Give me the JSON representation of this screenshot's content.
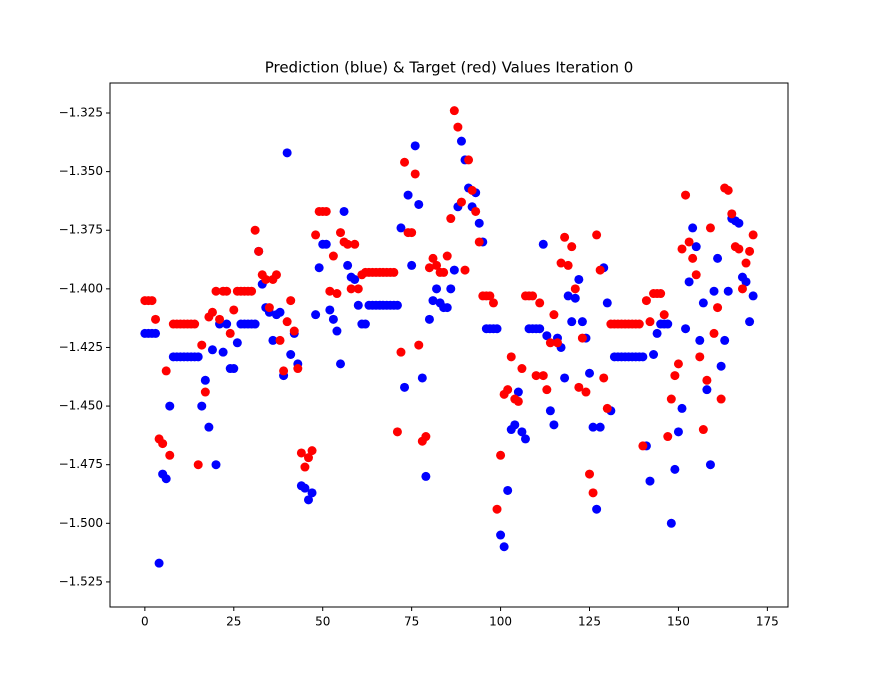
{
  "chart_data": {
    "type": "scatter",
    "title": "Prediction (blue) & Target (red) Values Iteration 0",
    "x": [
      0,
      1,
      2,
      3,
      4,
      5,
      6,
      7,
      8,
      9,
      10,
      11,
      12,
      13,
      14,
      15,
      16,
      17,
      18,
      19,
      20,
      21,
      22,
      23,
      24,
      25,
      26,
      27,
      28,
      29,
      30,
      31,
      32,
      33,
      34,
      35,
      36,
      37,
      38,
      39,
      40,
      41,
      42,
      43,
      44,
      45,
      46,
      47,
      48,
      49,
      50,
      51,
      52,
      53,
      54,
      55,
      56,
      57,
      58,
      59,
      60,
      61,
      62,
      63,
      64,
      65,
      66,
      67,
      68,
      69,
      70,
      71,
      72,
      73,
      74,
      75,
      76,
      77,
      78,
      79,
      80,
      81,
      82,
      83,
      84,
      85,
      86,
      87,
      88,
      89,
      90,
      91,
      92,
      93,
      94,
      95,
      96,
      97,
      98,
      99,
      100,
      101,
      102,
      103,
      104,
      105,
      106,
      107,
      108,
      109,
      110,
      111,
      112,
      113,
      114,
      115,
      116,
      117,
      118,
      119,
      120,
      121,
      122,
      123,
      124,
      125,
      126,
      127,
      128,
      129,
      130,
      131,
      132,
      133,
      134,
      135,
      136,
      137,
      138,
      139,
      140,
      141,
      142,
      143,
      144,
      145,
      146,
      147,
      148,
      149,
      150,
      151,
      152,
      153,
      154,
      155,
      156,
      157,
      158,
      159,
      160,
      161,
      162,
      163,
      164,
      165,
      166,
      167,
      168,
      169,
      170,
      171
    ],
    "series": [
      {
        "color": "#0000ff",
        "values": [
          -1.419,
          -1.419,
          -1.419,
          -1.419,
          -1.517,
          -1.479,
          -1.481,
          -1.45,
          -1.429,
          -1.429,
          -1.429,
          -1.429,
          -1.429,
          -1.429,
          -1.429,
          -1.429,
          -1.45,
          -1.439,
          -1.459,
          -1.426,
          -1.475,
          -1.415,
          -1.427,
          -1.415,
          -1.434,
          -1.434,
          -1.423,
          -1.415,
          -1.415,
          -1.415,
          -1.415,
          -1.415,
          -1.384,
          -1.398,
          -1.408,
          -1.41,
          -1.422,
          -1.411,
          -1.41,
          -1.437,
          -1.342,
          -1.428,
          -1.419,
          -1.432,
          -1.484,
          -1.485,
          -1.49,
          -1.487,
          -1.411,
          -1.391,
          -1.381,
          -1.381,
          -1.409,
          -1.413,
          -1.418,
          -1.432,
          -1.367,
          -1.39,
          -1.395,
          -1.396,
          -1.407,
          -1.415,
          -1.415,
          -1.407,
          -1.407,
          -1.407,
          -1.407,
          -1.407,
          -1.407,
          -1.407,
          -1.407,
          -1.407,
          -1.374,
          -1.442,
          -1.36,
          -1.39,
          -1.339,
          -1.364,
          -1.438,
          -1.48,
          -1.413,
          -1.405,
          -1.4,
          -1.406,
          -1.408,
          -1.408,
          -1.4,
          -1.392,
          -1.365,
          -1.337,
          -1.345,
          -1.357,
          -1.365,
          -1.359,
          -1.372,
          -1.38,
          -1.417,
          -1.417,
          -1.417,
          -1.417,
          -1.505,
          -1.51,
          -1.486,
          -1.46,
          -1.458,
          -1.444,
          -1.461,
          -1.464,
          -1.417,
          -1.417,
          -1.417,
          -1.417,
          -1.381,
          -1.42,
          -1.452,
          -1.458,
          -1.421,
          -1.425,
          -1.438,
          -1.403,
          -1.414,
          -1.404,
          -1.396,
          -1.414,
          -1.421,
          -1.436,
          -1.459,
          -1.494,
          -1.459,
          -1.391,
          -1.406,
          -1.452,
          -1.429,
          -1.429,
          -1.429,
          -1.429,
          -1.429,
          -1.429,
          -1.429,
          -1.429,
          -1.429,
          -1.467,
          -1.482,
          -1.428,
          -1.419,
          -1.415,
          -1.415,
          -1.415,
          -1.5,
          -1.477,
          -1.461,
          -1.451,
          -1.417,
          -1.397,
          -1.374,
          -1.382,
          -1.422,
          -1.406,
          -1.443,
          -1.475,
          -1.401,
          -1.387,
          -1.433,
          -1.422,
          -1.401,
          -1.37,
          -1.371,
          -1.372,
          -1.395,
          -1.397,
          -1.414,
          -1.403
        ]
      },
      {
        "color": "#ff0000",
        "values": [
          -1.405,
          -1.405,
          -1.405,
          -1.413,
          -1.464,
          -1.466,
          -1.435,
          -1.471,
          -1.415,
          -1.415,
          -1.415,
          -1.415,
          -1.415,
          -1.415,
          -1.415,
          -1.475,
          -1.424,
          -1.444,
          -1.412,
          -1.41,
          -1.401,
          -1.413,
          -1.401,
          -1.401,
          -1.419,
          -1.409,
          -1.401,
          -1.401,
          -1.401,
          -1.401,
          -1.401,
          -1.375,
          -1.384,
          -1.394,
          -1.396,
          -1.408,
          -1.396,
          -1.394,
          -1.422,
          -1.435,
          -1.414,
          -1.405,
          -1.418,
          -1.434,
          -1.47,
          -1.476,
          -1.472,
          -1.469,
          -1.377,
          -1.367,
          -1.367,
          -1.367,
          -1.401,
          -1.386,
          -1.402,
          -1.376,
          -1.38,
          -1.381,
          -1.4,
          -1.381,
          -1.4,
          -1.394,
          -1.393,
          -1.393,
          -1.393,
          -1.393,
          -1.393,
          -1.393,
          -1.393,
          -1.393,
          -1.393,
          -1.461,
          -1.427,
          -1.346,
          -1.376,
          -1.376,
          -1.351,
          -1.424,
          -1.465,
          -1.463,
          -1.391,
          -1.387,
          -1.39,
          -1.393,
          -1.393,
          -1.386,
          -1.37,
          -1.324,
          -1.331,
          -1.363,
          -1.392,
          -1.345,
          -1.358,
          -1.367,
          -1.38,
          -1.403,
          -1.403,
          -1.403,
          -1.406,
          -1.494,
          -1.471,
          -1.445,
          -1.443,
          -1.429,
          -1.447,
          -1.448,
          -1.434,
          -1.403,
          -1.403,
          -1.403,
          -1.437,
          -1.406,
          -1.437,
          -1.443,
          -1.423,
          -1.411,
          -1.423,
          -1.389,
          -1.378,
          -1.39,
          -1.382,
          -1.4,
          -1.442,
          -1.421,
          -1.444,
          -1.479,
          -1.487,
          -1.377,
          -1.392,
          -1.438,
          -1.451,
          -1.415,
          -1.415,
          -1.415,
          -1.415,
          -1.415,
          -1.415,
          -1.415,
          -1.415,
          -1.415,
          -1.467,
          -1.405,
          -1.414,
          -1.402,
          -1.402,
          -1.402,
          -1.411,
          -1.463,
          -1.447,
          -1.437,
          -1.432,
          -1.383,
          -1.36,
          -1.38,
          -1.387,
          -1.394,
          -1.429,
          -1.46,
          -1.439,
          -1.374,
          -1.419,
          -1.408,
          -1.447,
          -1.357,
          -1.358,
          -1.368,
          -1.382,
          -1.383,
          -1.4,
          -1.389,
          -1.384,
          -1.377
        ]
      }
    ],
    "xlim": [
      -9.8,
      180.8
    ],
    "ylim": [
      -1.5357,
      -1.3122
    ],
    "xticks": [
      0,
      25,
      50,
      75,
      100,
      125,
      150,
      175
    ],
    "yticks": [
      {
        "value": -1.525,
        "label": "−1.525"
      },
      {
        "value": -1.5,
        "label": "−1.500"
      },
      {
        "value": -1.475,
        "label": "−1.475"
      },
      {
        "value": -1.45,
        "label": "−1.450"
      },
      {
        "value": -1.425,
        "label": "−1.425"
      },
      {
        "value": -1.4,
        "label": "−1.400"
      },
      {
        "value": -1.375,
        "label": "−1.375"
      },
      {
        "value": -1.35,
        "label": "−1.350"
      },
      {
        "value": -1.325,
        "label": "−1.325"
      }
    ],
    "grid": false
  }
}
